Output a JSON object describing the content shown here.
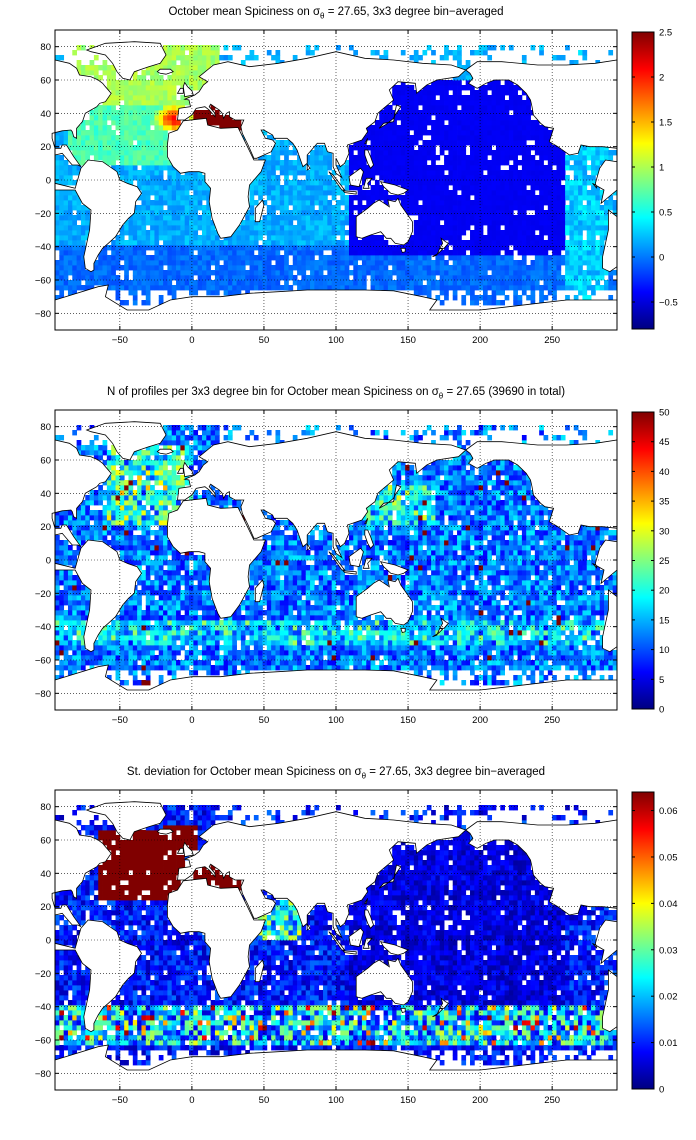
{
  "chart_data": [
    {
      "type": "heatmap",
      "title_prefix": "October mean Spiciness on ",
      "title_symbol": "σ",
      "title_subscript": "θ",
      "title_suffix": " = 27.65, 3x3 degree bin−averaged",
      "x_ticks": [
        -50,
        0,
        50,
        100,
        150,
        200,
        250
      ],
      "y_ticks": [
        80,
        60,
        40,
        20,
        0,
        -20,
        -40,
        -60,
        -80
      ],
      "xlim": [
        -95,
        295
      ],
      "ylim": [
        -90,
        90
      ],
      "colorbar_ticks": [
        "2.5",
        "2",
        "1.5",
        "1",
        "0.5",
        "0",
        "-0.5"
      ],
      "colorbar_range": [
        -0.8,
        2.5
      ],
      "colormap": "jet",
      "grid": true,
      "field": "spiciness"
    },
    {
      "type": "heatmap",
      "title_prefix": "N of profiles per 3x3 degree bin for October mean Spiciness on ",
      "title_symbol": "σ",
      "title_subscript": "θ",
      "title_suffix": " = 27.65 (39690 in total)",
      "x_ticks": [
        -50,
        0,
        50,
        100,
        150,
        200,
        250
      ],
      "y_ticks": [
        80,
        60,
        40,
        20,
        0,
        -20,
        -40,
        -60,
        -80
      ],
      "xlim": [
        -95,
        295
      ],
      "ylim": [
        -90,
        90
      ],
      "colorbar_ticks": [
        "50",
        "45",
        "40",
        "35",
        "30",
        "25",
        "20",
        "15",
        "10",
        "5",
        "0"
      ],
      "colorbar_range": [
        0,
        50
      ],
      "colormap": "jet",
      "grid": true,
      "field": "count"
    },
    {
      "type": "heatmap",
      "title_prefix": "St. deviation for October mean Spiciness on ",
      "title_symbol": "σ",
      "title_subscript": "θ",
      "title_suffix": " = 27.65, 3x3 degree bin−averaged",
      "x_ticks": [
        -50,
        0,
        50,
        100,
        150,
        200,
        250
      ],
      "y_ticks": [
        80,
        60,
        40,
        20,
        0,
        -20,
        -40,
        -60,
        -80
      ],
      "xlim": [
        -95,
        295
      ],
      "ylim": [
        -90,
        90
      ],
      "colorbar_ticks": [
        "0.06",
        "0.05",
        "0.04",
        "0.03",
        "0.02",
        "0.01",
        "0"
      ],
      "colorbar_range": [
        0,
        0.064
      ],
      "colormap": "jet",
      "grid": true,
      "field": "std"
    }
  ]
}
